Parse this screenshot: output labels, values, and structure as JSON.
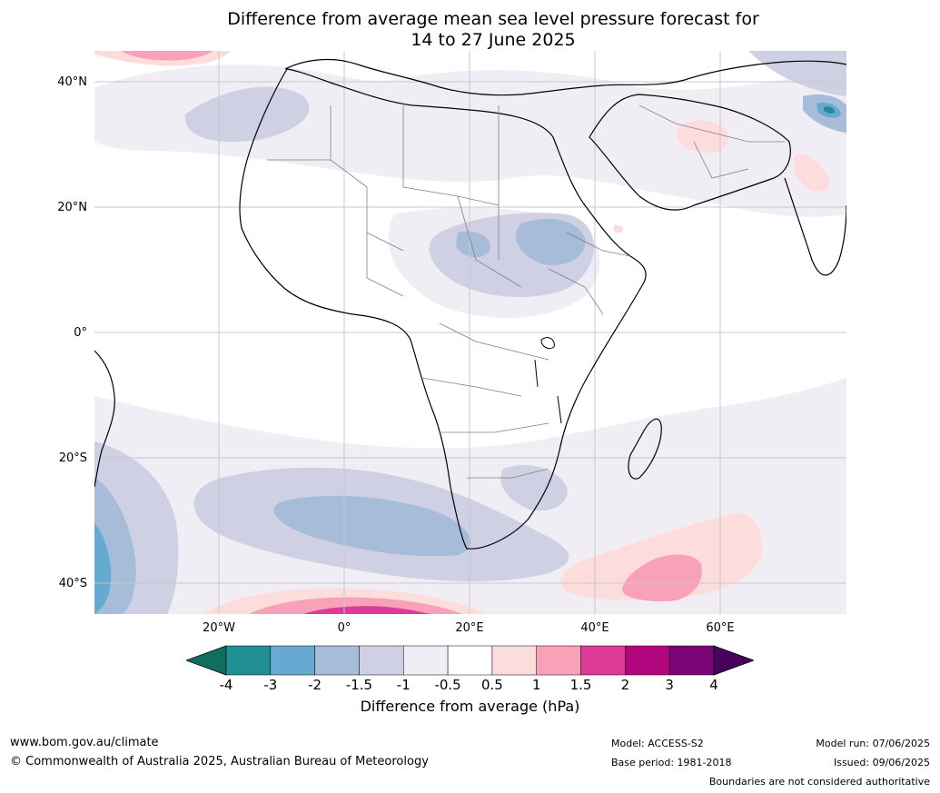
{
  "header": {
    "title_line1": "Difference from average mean sea level pressure forecast for",
    "title_line2": "14 to 27 June 2025"
  },
  "map": {
    "lat_labels": [
      "40°N",
      "20°N",
      "0°",
      "20°S",
      "40°S"
    ],
    "lon_labels": [
      "20°W",
      "0°",
      "20°E",
      "40°E",
      "60°E"
    ]
  },
  "colorbar": {
    "ticks": [
      "-4",
      "-3",
      "-2",
      "-1.5",
      "-1",
      "-0.5",
      "0.5",
      "1",
      "1.5",
      "2",
      "3",
      "4"
    ],
    "colors": [
      "#0f6e5e",
      "#1f8f93",
      "#66a9d1",
      "#a6bcd9",
      "#cfd0e4",
      "#f0edf4",
      "#ffffff",
      "#fddcdc",
      "#f9a1b8",
      "#de3a98",
      "#b2067d",
      "#7b0577",
      "#45035e"
    ],
    "label": "Difference from average (hPa)"
  },
  "footer": {
    "website": "www.bom.gov.au/climate",
    "copyright": "© Commonwealth of Australia 2025, Australian Bureau of Meteorology",
    "model": "Model: ACCESS-S2",
    "base_period": "Base period: 1981-2018",
    "model_run": "Model run: 07/06/2025",
    "issued": "Issued: 09/06/2025",
    "boundaries_note": "Boundaries are not considered authoritative"
  }
}
